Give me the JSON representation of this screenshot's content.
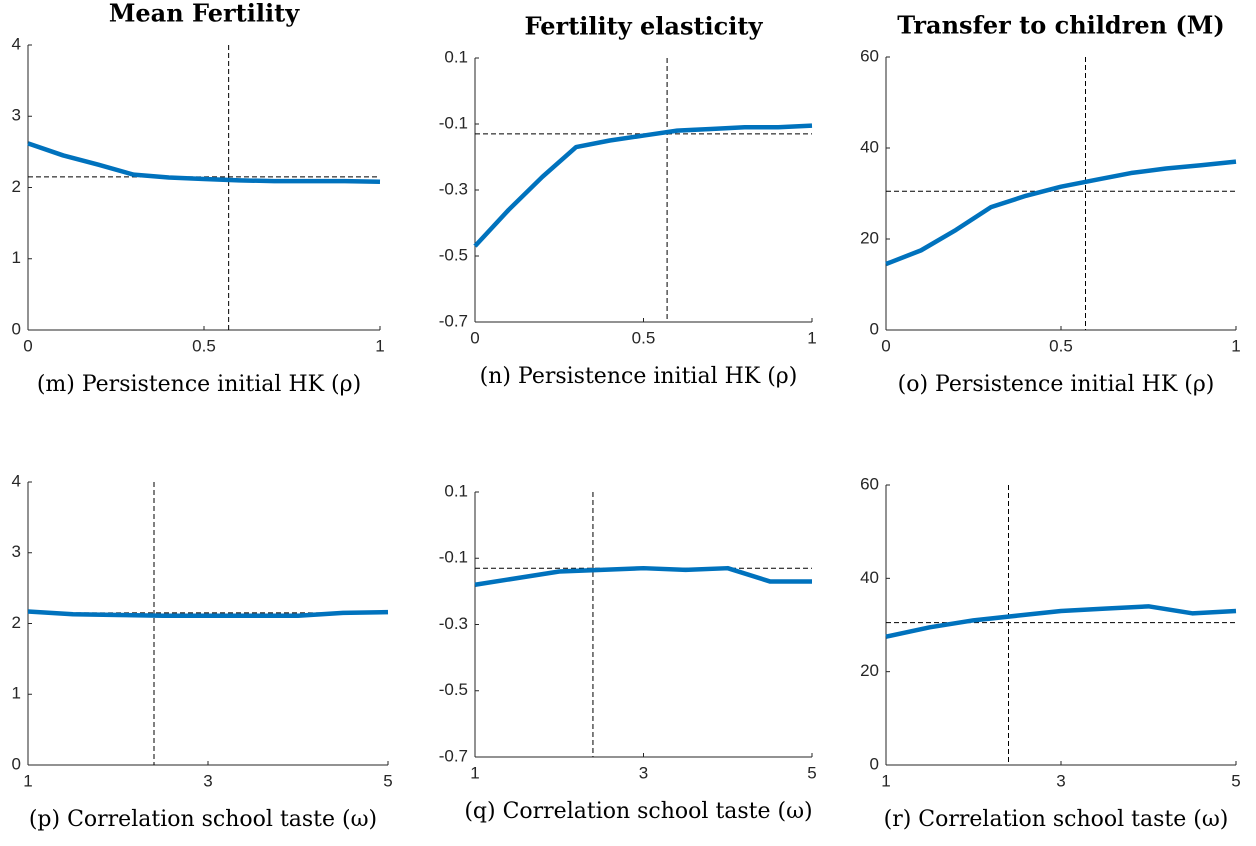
{
  "chart_data": [
    {
      "type": "line",
      "title": "Mean Fertility",
      "xlabel": "(m) Persistence initial HK (ρ)",
      "x": [
        0,
        0.1,
        0.2,
        0.3,
        0.4,
        0.5,
        0.6,
        0.7,
        0.8,
        0.9,
        1
      ],
      "values": [
        2.62,
        2.45,
        2.32,
        2.18,
        2.14,
        2.12,
        2.1,
        2.09,
        2.09,
        2.09,
        2.08
      ],
      "color": "#0072bd",
      "xlim": [
        0,
        1
      ],
      "ylim": [
        0,
        4
      ],
      "xticks": [
        0,
        0.5,
        1
      ],
      "yticks": [
        0,
        1,
        2,
        3,
        4
      ],
      "hline": 2.15,
      "vline": 0.57
    },
    {
      "type": "line",
      "title": "Fertility elasticity",
      "xlabel": "(n) Persistence initial HK (ρ)",
      "x": [
        0,
        0.1,
        0.2,
        0.3,
        0.4,
        0.5,
        0.6,
        0.7,
        0.8,
        0.9,
        1
      ],
      "values": [
        -0.47,
        -0.36,
        -0.26,
        -0.17,
        -0.15,
        -0.135,
        -0.12,
        -0.115,
        -0.11,
        -0.11,
        -0.105
      ],
      "color": "#0072bd",
      "xlim": [
        0,
        1
      ],
      "ylim": [
        -0.7,
        0.1
      ],
      "xticks": [
        0,
        0.5,
        1
      ],
      "yticks": [
        -0.7,
        -0.5,
        -0.3,
        -0.1,
        0.1
      ],
      "hline": -0.13,
      "vline": 0.57
    },
    {
      "type": "line",
      "title": "Transfer to children (M)",
      "xlabel": "(o) Persistence initial HK (ρ)",
      "x": [
        0,
        0.1,
        0.2,
        0.3,
        0.4,
        0.5,
        0.6,
        0.7,
        0.8,
        0.9,
        1
      ],
      "values": [
        14.5,
        17.5,
        22,
        27,
        29.5,
        31.5,
        33,
        34.5,
        35.5,
        36.2,
        37
      ],
      "color": "#0072bd",
      "xlim": [
        0,
        1
      ],
      "ylim": [
        0,
        60
      ],
      "xticks": [
        0,
        0.5,
        1
      ],
      "yticks": [
        0,
        20,
        40,
        60
      ],
      "hline": 30.5,
      "vline": 0.57
    },
    {
      "type": "line",
      "xlabel": "(p) Correlation school taste (ω)",
      "x": [
        1,
        1.5,
        2,
        2.5,
        3,
        3.5,
        4,
        4.5,
        5
      ],
      "values": [
        2.17,
        2.13,
        2.12,
        2.11,
        2.11,
        2.11,
        2.11,
        2.15,
        2.16
      ],
      "color": "#0072bd",
      "xlim": [
        1,
        5
      ],
      "ylim": [
        0,
        4
      ],
      "xticks": [
        1,
        3,
        5
      ],
      "yticks": [
        0,
        1,
        2,
        3,
        4
      ],
      "hline": 2.15,
      "vline": 2.4
    },
    {
      "type": "line",
      "xlabel": "(q) Correlation school taste (ω)",
      "x": [
        1,
        1.5,
        2,
        2.5,
        3,
        3.5,
        4,
        4.5,
        5
      ],
      "values": [
        -0.18,
        -0.16,
        -0.14,
        -0.135,
        -0.13,
        -0.135,
        -0.13,
        -0.17,
        -0.17
      ],
      "color": "#0072bd",
      "xlim": [
        1,
        5
      ],
      "ylim": [
        -0.7,
        0.1
      ],
      "xticks": [
        1,
        3,
        5
      ],
      "yticks": [
        -0.7,
        -0.5,
        -0.3,
        -0.1,
        0.1
      ],
      "hline": -0.13,
      "vline": 2.4
    },
    {
      "type": "line",
      "xlabel": "(r) Correlation school taste (ω)",
      "x": [
        1,
        1.5,
        2,
        2.5,
        3,
        3.5,
        4,
        4.5,
        5
      ],
      "values": [
        27.5,
        29.5,
        31,
        32,
        33,
        33.5,
        34,
        32.5,
        33
      ],
      "color": "#0072bd",
      "xlim": [
        1,
        5
      ],
      "ylim": [
        0,
        60
      ],
      "xticks": [
        1,
        3,
        5
      ],
      "yticks": [
        0,
        20,
        40,
        60
      ],
      "hline": 30.5,
      "vline": 2.4
    }
  ]
}
